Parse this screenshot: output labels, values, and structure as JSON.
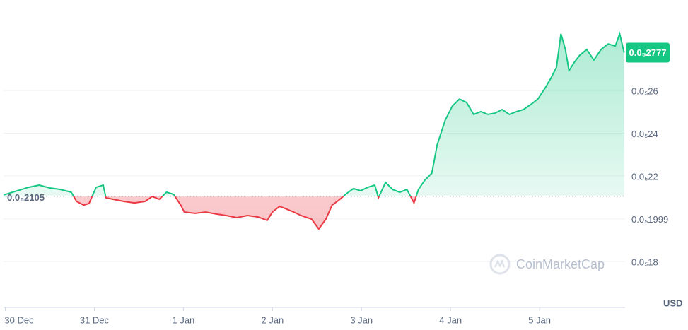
{
  "chart_data": {
    "type": "line",
    "x": [
      -0.02,
      0.26,
      0.38,
      0.5,
      0.62,
      0.74,
      0.8,
      0.88,
      0.94,
      1.02,
      1.1,
      1.13,
      1.21,
      1.33,
      1.45,
      1.57,
      1.65,
      1.73,
      1.81,
      1.89,
      1.97,
      2.01,
      2.13,
      2.25,
      2.37,
      2.48,
      2.6,
      2.72,
      2.84,
      2.94,
      3.0,
      3.08,
      3.16,
      3.24,
      3.32,
      3.44,
      3.52,
      3.6,
      3.67,
      3.75,
      3.83,
      3.91,
      3.99,
      4.07,
      4.15,
      4.19,
      4.27,
      4.35,
      4.43,
      4.51,
      4.59,
      4.64,
      4.71,
      4.79,
      4.85,
      4.94,
      5.02,
      5.1,
      5.18,
      5.26,
      5.34,
      5.42,
      5.5,
      5.58,
      5.66,
      5.74,
      5.82,
      5.9,
      5.98,
      6.06,
      6.13,
      6.19,
      6.24,
      6.29,
      6.33,
      6.39,
      6.45,
      6.53,
      6.61,
      6.69,
      6.77,
      6.85,
      6.9,
      6.95
    ],
    "values": [
      0.2111,
      0.2147,
      0.2157,
      0.2144,
      0.2137,
      0.2124,
      0.2081,
      0.2064,
      0.2071,
      0.2147,
      0.2157,
      0.2098,
      0.2091,
      0.2081,
      0.2074,
      0.2081,
      0.2104,
      0.2091,
      0.2124,
      0.2114,
      0.2064,
      0.2031,
      0.2025,
      0.2031,
      0.2022,
      0.2015,
      0.2005,
      0.2015,
      0.2008,
      0.1992,
      0.2031,
      0.2058,
      0.2045,
      0.2031,
      0.2015,
      0.1998,
      0.1952,
      0.1998,
      0.2064,
      0.2088,
      0.2117,
      0.2141,
      0.2131,
      0.2147,
      0.2157,
      0.2098,
      0.217,
      0.2137,
      0.2124,
      0.2137,
      0.2074,
      0.2137,
      0.218,
      0.2213,
      0.2346,
      0.2461,
      0.2527,
      0.256,
      0.2544,
      0.2488,
      0.2501,
      0.2488,
      0.2494,
      0.2511,
      0.2488,
      0.2501,
      0.2511,
      0.2534,
      0.256,
      0.261,
      0.266,
      0.2709,
      0.2865,
      0.2792,
      0.2693,
      0.2732,
      0.2765,
      0.2792,
      0.2742,
      0.2792,
      0.2818,
      0.2808,
      0.2865,
      0.2777
    ],
    "up_color": "#16c784",
    "down_color": "#ea3943",
    "xlim": [
      -0.02,
      6.96
    ],
    "xticks": [
      {
        "value": 0,
        "label": "30 Dec"
      },
      {
        "value": 1,
        "label": "31 Dec"
      },
      {
        "value": 2,
        "label": "1 Jan"
      },
      {
        "value": 3,
        "label": "2 Jan"
      },
      {
        "value": 4,
        "label": "3 Jan"
      },
      {
        "value": 5,
        "label": "4 Jan"
      },
      {
        "value": 6,
        "label": "5 Jan"
      }
    ],
    "ylim": [
      0.1585,
      0.3007
    ],
    "yticks": [
      {
        "value": 0.18,
        "label": "0.0₅18"
      },
      {
        "value": 0.1999,
        "label": "0.0₅1999"
      },
      {
        "value": 0.22,
        "label": "0.0₅22"
      },
      {
        "value": 0.24,
        "label": "0.0₅24"
      },
      {
        "value": 0.26,
        "label": "0.0₅26"
      }
    ],
    "grid": true,
    "baseline": {
      "value": 0.2105,
      "label": "0.0₅2105"
    },
    "current_price": {
      "value": 0.2777,
      "label": "0.0₅2777"
    },
    "unit": "USD",
    "watermark": "CoinMarketCap"
  }
}
